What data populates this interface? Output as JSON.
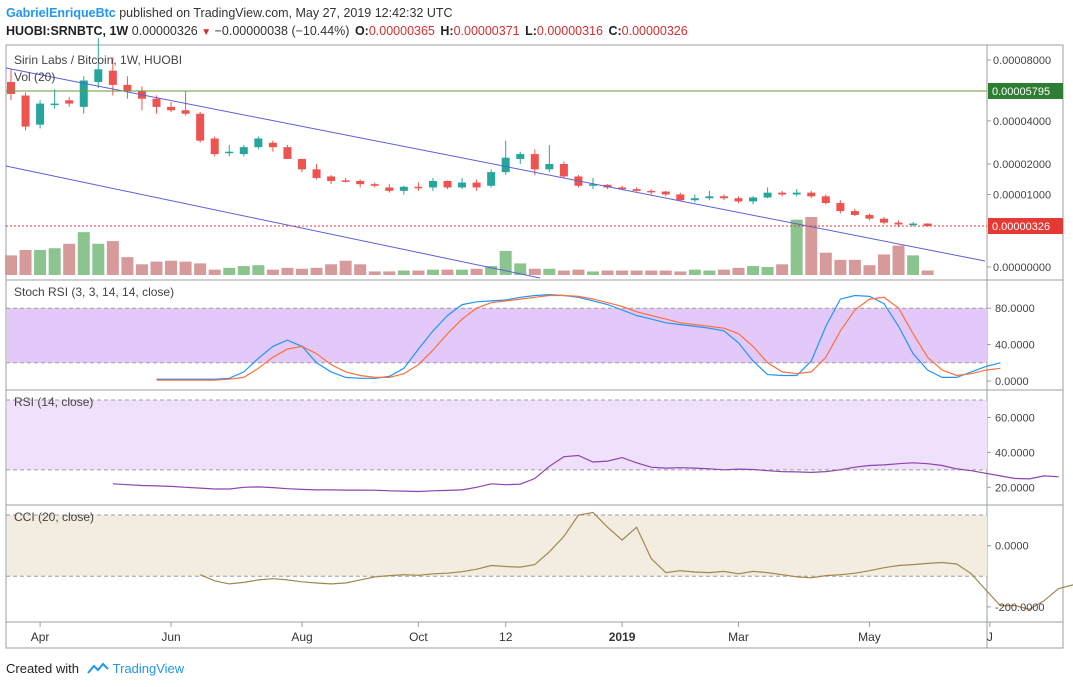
{
  "header": {
    "author": "GabrielEnriqueBtc",
    "published": "published on TradingView.com, May 27, 2019 12:42:32 UTC",
    "symbol_line": "HUOBI:SRNBTC, 1W",
    "price": "0.00000326",
    "change": "−0.00000038 (−10.44%)",
    "o_label": "O:",
    "o_value": "0.00000365",
    "h_label": "H:",
    "h_value": "0.00000371",
    "l_label": "L:",
    "l_value": "0.00000316",
    "c_label": "C:",
    "c_value": "0.00000326"
  },
  "footer": {
    "created_with": "Created with",
    "brand": "TradingView"
  },
  "colors": {
    "up": "#26a69a",
    "down": "#ef5350",
    "vol_up": "#8bc48f",
    "vol_down": "#d79a9a",
    "trend": "#5b5fd6",
    "resistance": "#6a9a3a",
    "last_price": "#e53935",
    "stoch_k": "#2196f3",
    "stoch_d": "#ff6f3c",
    "stoch_band": "#e2c9f9",
    "rsi_line": "#8e44ad",
    "rsi_band": "#efe0fb",
    "cci_line": "#a08850",
    "cci_band": "#f3ece0"
  },
  "chart_data": [
    {
      "type": "candlestick",
      "title": "Sirin Labs / Bitcoin, 1W, HUOBI",
      "indicator_label": "Vol (20)",
      "y_ticks": [
        "0.00008000",
        "0.00004000",
        "0.00002000",
        "0.00001000",
        "0.00000000"
      ],
      "y_tick_values": [
        8e-05,
        4e-05,
        2e-05,
        1e-05,
        0.0
      ],
      "resistance_level": 5.795e-05,
      "resistance_label": "0.00005795",
      "last_price": 3.26e-06,
      "last_price_label": "0.00000326",
      "x_ticks": [
        "Apr",
        "Jun",
        "Aug",
        "Oct",
        "12",
        "2019",
        "Mar",
        "May",
        "J"
      ],
      "candles": [
        {
          "o": 6.4e-05,
          "h": 7.3e-05,
          "l": 5.2e-05,
          "c": 5.6e-05
        },
        {
          "o": 5.5e-05,
          "h": 5.7e-05,
          "l": 3.5e-05,
          "c": 3.7e-05
        },
        {
          "o": 3.8e-05,
          "h": 5.2e-05,
          "l": 3.6e-05,
          "c": 5e-05
        },
        {
          "o": 5e-05,
          "h": 5.9e-05,
          "l": 4.7e-05,
          "c": 5e-05
        },
        {
          "o": 5.2e-05,
          "h": 5.4e-05,
          "l": 4.8e-05,
          "c": 5e-05
        },
        {
          "o": 4.8e-05,
          "h": 6.8e-05,
          "l": 4.4e-05,
          "c": 6.5e-05
        },
        {
          "o": 6.4e-05,
          "h": 9.8e-05,
          "l": 6e-05,
          "c": 7.3e-05
        },
        {
          "o": 7.2e-05,
          "h": 8.2e-05,
          "l": 5.5e-05,
          "c": 6.2e-05
        },
        {
          "o": 6.2e-05,
          "h": 6.8e-05,
          "l": 5.3e-05,
          "c": 5.8e-05
        },
        {
          "o": 5.8e-05,
          "h": 6.1e-05,
          "l": 4.6e-05,
          "c": 5.3e-05
        },
        {
          "o": 5.3e-05,
          "h": 5.5e-05,
          "l": 4.4e-05,
          "c": 4.8e-05
        },
        {
          "o": 4.8e-05,
          "h": 5.1e-05,
          "l": 4.5e-05,
          "c": 4.6e-05
        },
        {
          "o": 4.6e-05,
          "h": 5.8e-05,
          "l": 4.3e-05,
          "c": 4.4e-05
        },
        {
          "o": 4.4e-05,
          "h": 4.5e-05,
          "l": 2.9e-05,
          "c": 3e-05
        },
        {
          "o": 3.1e-05,
          "h": 3.2e-05,
          "l": 2.3e-05,
          "c": 2.4e-05
        },
        {
          "o": 2.5e-05,
          "h": 2.8e-05,
          "l": 2.3e-05,
          "c": 2.5e-05
        },
        {
          "o": 2.4e-05,
          "h": 2.8e-05,
          "l": 2.3e-05,
          "c": 2.7e-05
        },
        {
          "o": 2.7e-05,
          "h": 3.2e-05,
          "l": 2.6e-05,
          "c": 3.1e-05
        },
        {
          "o": 2.9e-05,
          "h": 3e-05,
          "l": 2.5e-05,
          "c": 2.7e-05
        },
        {
          "o": 2.7e-05,
          "h": 2.8e-05,
          "l": 2.2e-05,
          "c": 2.2e-05
        },
        {
          "o": 2.2e-05,
          "h": 2.2e-05,
          "l": 1.7e-05,
          "c": 1.8e-05
        },
        {
          "o": 1.8e-05,
          "h": 2e-05,
          "l": 1.45e-05,
          "c": 1.5e-05
        },
        {
          "o": 1.55e-05,
          "h": 1.6e-05,
          "l": 1.3e-05,
          "c": 1.4e-05
        },
        {
          "o": 1.42e-05,
          "h": 1.5e-05,
          "l": 1.35e-05,
          "c": 1.4e-05
        },
        {
          "o": 1.4e-05,
          "h": 1.45e-05,
          "l": 1.2e-05,
          "c": 1.3e-05
        },
        {
          "o": 1.3e-05,
          "h": 1.35e-05,
          "l": 1.2e-05,
          "c": 1.25e-05
        },
        {
          "o": 1.2e-05,
          "h": 1.3e-05,
          "l": 1.05e-05,
          "c": 1.1e-05
        },
        {
          "o": 1.1e-05,
          "h": 1.25e-05,
          "l": 1e-05,
          "c": 1.22e-05
        },
        {
          "o": 1.22e-05,
          "h": 1.35e-05,
          "l": 1.1e-05,
          "c": 1.2e-05
        },
        {
          "o": 1.2e-05,
          "h": 1.5e-05,
          "l": 1.1e-05,
          "c": 1.4e-05
        },
        {
          "o": 1.4e-05,
          "h": 1.42e-05,
          "l": 1.15e-05,
          "c": 1.2e-05
        },
        {
          "o": 1.2e-05,
          "h": 1.5e-05,
          "l": 1.15e-05,
          "c": 1.35e-05
        },
        {
          "o": 1.35e-05,
          "h": 1.45e-05,
          "l": 1.1e-05,
          "c": 1.2e-05
        },
        {
          "o": 1.25e-05,
          "h": 1.8e-05,
          "l": 1.2e-05,
          "c": 1.7e-05
        },
        {
          "o": 1.7e-05,
          "h": 3e-05,
          "l": 1.6e-05,
          "c": 2.25e-05
        },
        {
          "o": 2.2e-05,
          "h": 2.5e-05,
          "l": 2e-05,
          "c": 2.4e-05
        },
        {
          "o": 2.4e-05,
          "h": 2.6e-05,
          "l": 1.6e-05,
          "c": 1.8e-05
        },
        {
          "o": 1.8e-05,
          "h": 2.8e-05,
          "l": 1.7e-05,
          "c": 2e-05
        },
        {
          "o": 2e-05,
          "h": 2.1e-05,
          "l": 1.5e-05,
          "c": 1.55e-05
        },
        {
          "o": 1.55e-05,
          "h": 1.6e-05,
          "l": 1.2e-05,
          "c": 1.25e-05
        },
        {
          "o": 1.25e-05,
          "h": 1.5e-05,
          "l": 1.15e-05,
          "c": 1.3e-05
        },
        {
          "o": 1.28e-05,
          "h": 1.3e-05,
          "l": 1.15e-05,
          "c": 1.2e-05
        },
        {
          "o": 1.2e-05,
          "h": 1.25e-05,
          "l": 1.12e-05,
          "c": 1.15e-05
        },
        {
          "o": 1.15e-05,
          "h": 1.2e-05,
          "l": 1.08e-05,
          "c": 1.1e-05
        },
        {
          "o": 1.1e-05,
          "h": 1.15e-05,
          "l": 1e-05,
          "c": 1.08e-05
        },
        {
          "o": 1.08e-05,
          "h": 1.1e-05,
          "l": 9.5e-06,
          "c": 1e-05
        },
        {
          "o": 1e-05,
          "h": 1.05e-05,
          "l": 8.2e-06,
          "c": 8.5e-06
        },
        {
          "o": 8.5e-06,
          "h": 1e-05,
          "l": 8e-06,
          "c": 9e-06
        },
        {
          "o": 9e-06,
          "h": 1.1e-05,
          "l": 8.5e-06,
          "c": 9.5e-06
        },
        {
          "o": 9.5e-06,
          "h": 1e-05,
          "l": 8.5e-06,
          "c": 9e-06
        },
        {
          "o": 9e-06,
          "h": 9.5e-06,
          "l": 7.8e-06,
          "c": 8.2e-06
        },
        {
          "o": 8.2e-06,
          "h": 9.5e-06,
          "l": 7.5e-06,
          "c": 9.2e-06
        },
        {
          "o": 9.2e-06,
          "h": 1.2e-05,
          "l": 9e-06,
          "c": 1.05e-05
        },
        {
          "o": 1.05e-05,
          "h": 1.1e-05,
          "l": 9.5e-06,
          "c": 1e-05
        },
        {
          "o": 1e-05,
          "h": 1.15e-05,
          "l": 9.5e-06,
          "c": 1.05e-05
        },
        {
          "o": 1.05e-05,
          "h": 1.1e-05,
          "l": 9e-06,
          "c": 9.5e-06
        },
        {
          "o": 9.5e-06,
          "h": 1e-05,
          "l": 7.5e-06,
          "c": 7.8e-06
        },
        {
          "o": 7.8e-06,
          "h": 8.5e-06,
          "l": 5.5e-06,
          "c": 6e-06
        },
        {
          "o": 6e-06,
          "h": 6.5e-06,
          "l": 5e-06,
          "c": 5.2e-06
        },
        {
          "o": 5.2e-06,
          "h": 5.5e-06,
          "l": 4.2e-06,
          "c": 4.5e-06
        },
        {
          "o": 4.5e-06,
          "h": 4.8e-06,
          "l": 3.5e-06,
          "c": 3.8e-06
        },
        {
          "o": 3.8e-06,
          "h": 4.2e-06,
          "l": 3.1e-06,
          "c": 3.5e-06
        },
        {
          "o": 3.5e-06,
          "h": 3.9e-06,
          "l": 3.2e-06,
          "c": 3.65e-06
        },
        {
          "o": 3.65e-06,
          "h": 3.71e-06,
          "l": 3.16e-06,
          "c": 3.26e-06
        }
      ],
      "volume": [
        22,
        28,
        28,
        30,
        35,
        48,
        35,
        38,
        20,
        12,
        15,
        16,
        15,
        13,
        6,
        8,
        10,
        11,
        6,
        8,
        7,
        8,
        12,
        16,
        12,
        4,
        4,
        5,
        5,
        6,
        6,
        6,
        7,
        10,
        27,
        13,
        7,
        7,
        5,
        6,
        4,
        5,
        5,
        5,
        5,
        5,
        4,
        6,
        5,
        6,
        8,
        10,
        9,
        12,
        62,
        65,
        25,
        17,
        17,
        11,
        23,
        33,
        22,
        5
      ]
    },
    {
      "type": "line",
      "title": "Stoch RSI (3, 3, 14, 14, close)",
      "y_ticks": [
        "80.0000",
        "40.0000",
        "0.0000"
      ],
      "y_tick_values": [
        80,
        40,
        0
      ],
      "band": [
        20,
        80
      ],
      "start_index": 10,
      "series": [
        {
          "values": [
            2,
            2,
            2,
            2,
            2,
            3,
            10,
            25,
            38,
            45,
            38,
            20,
            10,
            4,
            3,
            3,
            5,
            14,
            35,
            55,
            72,
            84,
            87,
            88,
            89,
            92,
            94,
            95,
            94,
            92,
            88,
            84,
            78,
            72,
            68,
            64,
            62,
            60,
            58,
            55,
            42,
            22,
            7,
            6,
            6,
            22,
            60,
            90,
            94,
            93,
            85,
            60,
            30,
            12,
            4,
            4,
            10,
            16,
            20
          ]
        },
        {
          "values": [
            1,
            1,
            1,
            1,
            1,
            2,
            4,
            14,
            26,
            35,
            38,
            30,
            18,
            10,
            6,
            4,
            4,
            8,
            18,
            34,
            52,
            68,
            80,
            86,
            88,
            90,
            92,
            94,
            94,
            93,
            90,
            86,
            82,
            76,
            72,
            68,
            64,
            62,
            60,
            58,
            52,
            38,
            20,
            10,
            8,
            10,
            26,
            55,
            78,
            90,
            92,
            80,
            52,
            26,
            12,
            6,
            8,
            12,
            14
          ]
        }
      ]
    },
    {
      "type": "line",
      "title": "RSI (14, close)",
      "y_ticks": [
        "60.0000",
        "40.0000",
        "20.0000"
      ],
      "y_tick_values": [
        60,
        40,
        20
      ],
      "band": [
        30,
        70
      ],
      "start_index": 7,
      "series": [
        {
          "values": [
            22,
            21.5,
            21,
            20.8,
            20.5,
            20,
            19.5,
            19,
            19,
            20,
            20.2,
            19.8,
            19.2,
            18.8,
            18.5,
            18.5,
            18.4,
            18.4,
            18.3,
            18,
            17.8,
            17.6,
            18,
            18.2,
            18.5,
            20,
            22,
            21.5,
            21.8,
            25,
            32,
            37.5,
            38.2,
            34.5,
            35,
            37,
            34,
            31.5,
            31,
            31.2,
            31,
            30.6,
            30,
            30.4,
            30.2,
            29.5,
            29,
            28.8,
            28.5,
            29,
            30,
            31.5,
            32.5,
            32.8,
            33.5,
            34,
            33.5,
            32.5,
            30.5,
            29.5,
            28,
            26.5,
            25,
            24.8,
            26.5,
            26
          ]
        }
      ]
    },
    {
      "type": "line",
      "title": "CCI (20, close)",
      "y_ticks": [
        "0.0000",
        "-200.0000"
      ],
      "y_tick_values": [
        0,
        -200
      ],
      "band": [
        -100,
        100
      ],
      "start_index": 13,
      "series": [
        {
          "values": [
            -95,
            -115,
            -125,
            -120,
            -112,
            -108,
            -112,
            -118,
            -122,
            -125,
            -122,
            -112,
            -102,
            -98,
            -95,
            -97,
            -92,
            -90,
            -85,
            -77,
            -65,
            -68,
            -70,
            -62,
            -20,
            30,
            100,
            108,
            60,
            18,
            60,
            -42,
            -88,
            -82,
            -86,
            -88,
            -84,
            -92,
            -84,
            -88,
            -95,
            -102,
            -105,
            -98,
            -95,
            -90,
            -82,
            -72,
            -65,
            -62,
            -58,
            -55,
            -60,
            -92,
            -145,
            -196,
            -196,
            -208,
            -180,
            -140,
            -128
          ]
        }
      ]
    }
  ]
}
